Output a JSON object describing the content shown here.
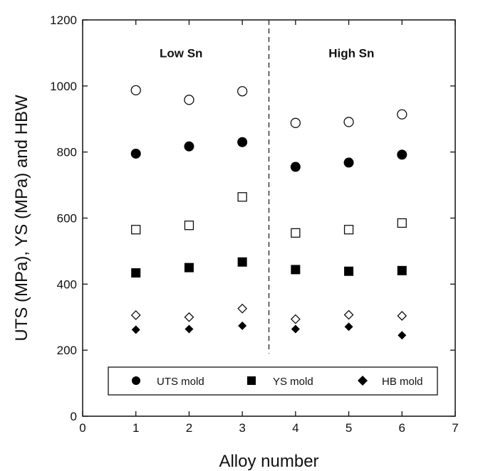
{
  "chart_data": {
    "type": "scatter",
    "title": "",
    "xlabel": "Alloy number",
    "ylabel": "UTS (MPa), YS (MPa) and HBW",
    "xlim": [
      0,
      7
    ],
    "ylim": [
      0,
      1200
    ],
    "x_ticks": [
      0,
      1,
      2,
      3,
      4,
      5,
      6,
      7
    ],
    "y_ticks": [
      0,
      200,
      400,
      600,
      800,
      1000,
      1200
    ],
    "grid": false,
    "divider_x": 3.5,
    "regions": [
      {
        "label": "Low Sn"
      },
      {
        "label": "High Sn"
      }
    ],
    "legend_placement": "bottom",
    "series": [
      {
        "name": "UTS mold",
        "marker": "filled-circle",
        "x": [
          1,
          2,
          3,
          4,
          5,
          6
        ],
        "values": [
          795,
          817,
          830,
          755,
          768,
          792
        ]
      },
      {
        "name": "YS mold",
        "marker": "filled-square",
        "x": [
          1,
          2,
          3,
          4,
          5,
          6
        ],
        "values": [
          434,
          450,
          467,
          444,
          439,
          441
        ]
      },
      {
        "name": "HB mold",
        "marker": "filled-diamond",
        "x": [
          1,
          2,
          3,
          4,
          5,
          6
        ],
        "values": [
          262,
          264,
          274,
          264,
          271,
          245
        ]
      },
      {
        "marker": "open-circle",
        "x": [
          1,
          2,
          3,
          4,
          5,
          6
        ],
        "values": [
          987,
          958,
          984,
          888,
          891,
          914
        ]
      },
      {
        "marker": "open-square",
        "x": [
          1,
          2,
          3,
          4,
          5,
          6
        ],
        "values": [
          565,
          578,
          664,
          555,
          565,
          585
        ]
      },
      {
        "marker": "open-diamond",
        "x": [
          1,
          2,
          3,
          4,
          5,
          6
        ],
        "values": [
          306,
          300,
          326,
          294,
          307,
          304
        ]
      }
    ]
  }
}
